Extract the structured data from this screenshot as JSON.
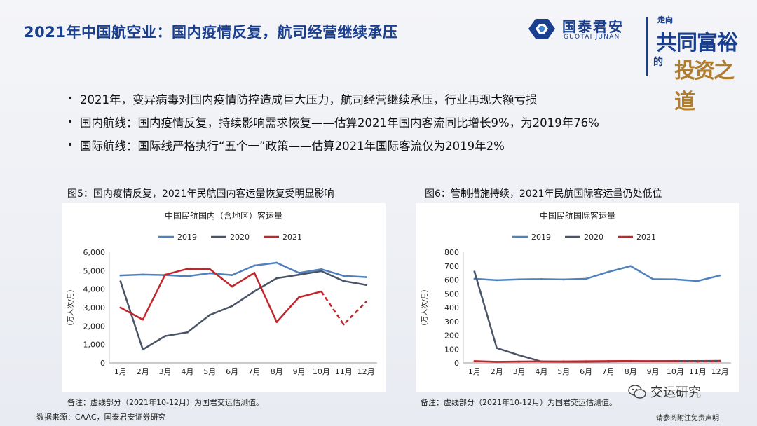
{
  "header": {
    "title": "2021年中国航空业：国内疫情反复，航司经营继续承压",
    "logo_cn": "国泰君安",
    "logo_en": "GUOTAI JUNAN",
    "slogan_1": "走向",
    "slogan_2": "共同富裕",
    "slogan_3": "的",
    "slogan_4": "投资之道"
  },
  "bullets": [
    "2021年，变异病毒对国内疫情防控造成巨大压力，航司经营继续承压，行业再现大额亏损",
    "国内航线：国内疫情反复，持续影响需求恢复——估算2021年国内客流同比增长9%，为2019年76%",
    "国际航线：国际线严格执行“五个一”政策——估算2021年国际客流仅为2019年2%"
  ],
  "bullet_marker": "•",
  "figures": {
    "fig5_title": "图5：国内疫情反复，2021年民航国内客运量恢复受明显影响",
    "fig6_title": "图6：管制措施持续，2021年民航国际客运量仍处低位",
    "fig5_note": "备注：虚线部分（2021年10-12月）为国君交运估测值。",
    "fig6_note": "备注：虚线部分（2021年10-12月）为国君交运估测值。"
  },
  "footer": {
    "source": "数据来源：CAAC，国泰君安证券研究",
    "wechat": "交运研究",
    "disclaimer": "请参阅附注免责声明"
  },
  "chart_data": [
    {
      "type": "line",
      "title": "中国民航国内（含地区）客运量",
      "xlabel": "",
      "ylabel": "（万人次/月）",
      "categories": [
        "1月",
        "2月",
        "3月",
        "4月",
        "5月",
        "6月",
        "7月",
        "8月",
        "9月",
        "10月",
        "11月",
        "12月"
      ],
      "ylim": [
        0,
        6000
      ],
      "yticks": [
        "0",
        "1,000",
        "2,000",
        "3,000",
        "4,000",
        "5,000",
        "6,000"
      ],
      "ytick_values": [
        0,
        1000,
        2000,
        3000,
        4000,
        5000,
        6000
      ],
      "series": [
        {
          "name": "2019",
          "color": "#4f81bd",
          "values": [
            4740,
            4790,
            4760,
            4700,
            4860,
            4760,
            5280,
            5430,
            4880,
            5080,
            4720,
            4650
          ],
          "dashed_from": null
        },
        {
          "name": "2020",
          "color": "#4a5467",
          "values": [
            4420,
            730,
            1460,
            1660,
            2600,
            3080,
            3880,
            4590,
            4780,
            4980,
            4440,
            4230
          ],
          "dashed_from": null
        },
        {
          "name": "2021",
          "color": "#c0272d",
          "values": [
            3000,
            2350,
            4780,
            5100,
            5090,
            4140,
            4880,
            2220,
            3560,
            3870,
            2090,
            3300
          ],
          "dashed_from": 9
        }
      ],
      "legend": "top"
    },
    {
      "type": "line",
      "title": "中国民航国际客运量",
      "xlabel": "",
      "ylabel": "（万人次/月）",
      "categories": [
        "1月",
        "2月",
        "3月",
        "4月",
        "5月",
        "6月",
        "7月",
        "8月",
        "9月",
        "10月",
        "11月",
        "12月"
      ],
      "ylim": [
        0,
        800
      ],
      "yticks": [
        "0",
        "100",
        "200",
        "300",
        "400",
        "500",
        "600",
        "700",
        "800"
      ],
      "ytick_values": [
        0,
        100,
        200,
        300,
        400,
        500,
        600,
        700,
        800
      ],
      "series": [
        {
          "name": "2019",
          "color": "#4f81bd",
          "values": [
            608,
            598,
            604,
            606,
            603,
            608,
            658,
            700,
            606,
            604,
            592,
            632
          ],
          "dashed_from": null
        },
        {
          "name": "2020",
          "color": "#4a5467",
          "values": [
            660,
            108,
            56,
            10,
            9,
            9,
            10,
            12,
            13,
            14,
            14,
            15
          ],
          "dashed_from": null
        },
        {
          "name": "2021",
          "color": "#c0272d",
          "values": [
            13,
            8,
            10,
            11,
            11,
            12,
            13,
            14,
            12,
            12,
            11,
            12
          ],
          "dashed_from": 9
        }
      ],
      "legend": "top"
    }
  ]
}
